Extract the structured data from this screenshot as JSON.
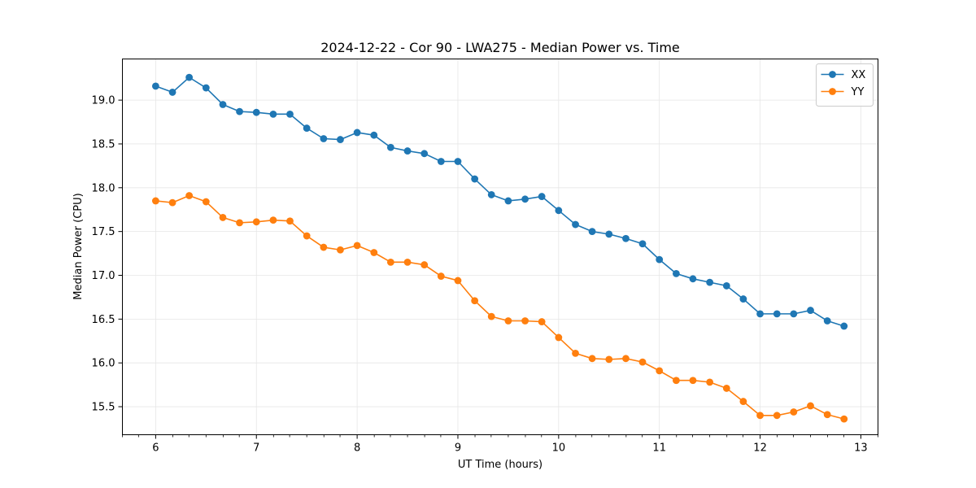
{
  "chart_data": {
    "type": "line",
    "title": "2024-12-22 - Cor 90 - LWA275 - Median Power vs. Time",
    "xlabel": "UT Time (hours)",
    "ylabel": "Median Power (CPU)",
    "xlim": [
      5.67,
      13.17
    ],
    "ylim": [
      15.18,
      19.47
    ],
    "xticks": [
      6,
      7,
      8,
      9,
      10,
      11,
      12,
      13
    ],
    "xticks_minor": [
      5.67,
      5.83,
      6.17,
      6.33,
      6.5,
      6.67,
      6.83,
      7.17,
      7.33,
      7.5,
      7.67,
      7.83,
      8.17,
      8.33,
      8.5,
      8.67,
      8.83,
      9.17,
      9.33,
      9.5,
      9.67,
      9.83,
      10.17,
      10.33,
      10.5,
      10.67,
      10.83,
      11.17,
      11.33,
      11.5,
      11.67,
      11.83,
      12.17,
      12.33,
      12.5,
      12.67,
      12.83,
      13.17
    ],
    "yticks": [
      15.5,
      16.0,
      16.5,
      17.0,
      17.5,
      18.0,
      18.5,
      19.0
    ],
    "ytick_labels": [
      "15.5",
      "16.0",
      "16.5",
      "17.0",
      "17.5",
      "18.0",
      "18.5",
      "19.0"
    ],
    "grid": true,
    "legend_position": "top-right",
    "x": [
      6.0,
      6.167,
      6.333,
      6.5,
      6.667,
      6.833,
      7.0,
      7.167,
      7.333,
      7.5,
      7.667,
      7.833,
      8.0,
      8.167,
      8.333,
      8.5,
      8.667,
      8.833,
      9.0,
      9.167,
      9.333,
      9.5,
      9.667,
      9.833,
      10.0,
      10.167,
      10.333,
      10.5,
      10.667,
      10.833,
      11.0,
      11.167,
      11.333,
      11.5,
      11.667,
      11.833,
      12.0,
      12.167,
      12.333,
      12.5,
      12.667,
      12.833
    ],
    "series": [
      {
        "name": "XX",
        "color": "#1f77b4",
        "values": [
          19.16,
          19.09,
          19.26,
          19.14,
          18.95,
          18.87,
          18.86,
          18.84,
          18.84,
          18.68,
          18.56,
          18.55,
          18.63,
          18.6,
          18.46,
          18.42,
          18.39,
          18.3,
          18.3,
          18.1,
          17.92,
          17.85,
          17.87,
          17.9,
          17.74,
          17.58,
          17.5,
          17.47,
          17.42,
          17.36,
          17.18,
          17.02,
          16.96,
          16.92,
          16.88,
          16.73,
          16.56,
          16.56,
          16.56,
          16.6,
          16.48,
          16.42
        ]
      },
      {
        "name": "YY",
        "color": "#ff7f0e",
        "values": [
          17.85,
          17.83,
          17.91,
          17.84,
          17.66,
          17.6,
          17.61,
          17.63,
          17.62,
          17.45,
          17.32,
          17.29,
          17.34,
          17.26,
          17.15,
          17.15,
          17.12,
          16.99,
          16.94,
          16.71,
          16.53,
          16.48,
          16.48,
          16.47,
          16.29,
          16.11,
          16.05,
          16.04,
          16.05,
          16.01,
          15.91,
          15.8,
          15.8,
          15.78,
          15.71,
          15.56,
          15.4,
          15.4,
          15.44,
          15.51,
          15.41,
          15.36
        ]
      }
    ]
  }
}
